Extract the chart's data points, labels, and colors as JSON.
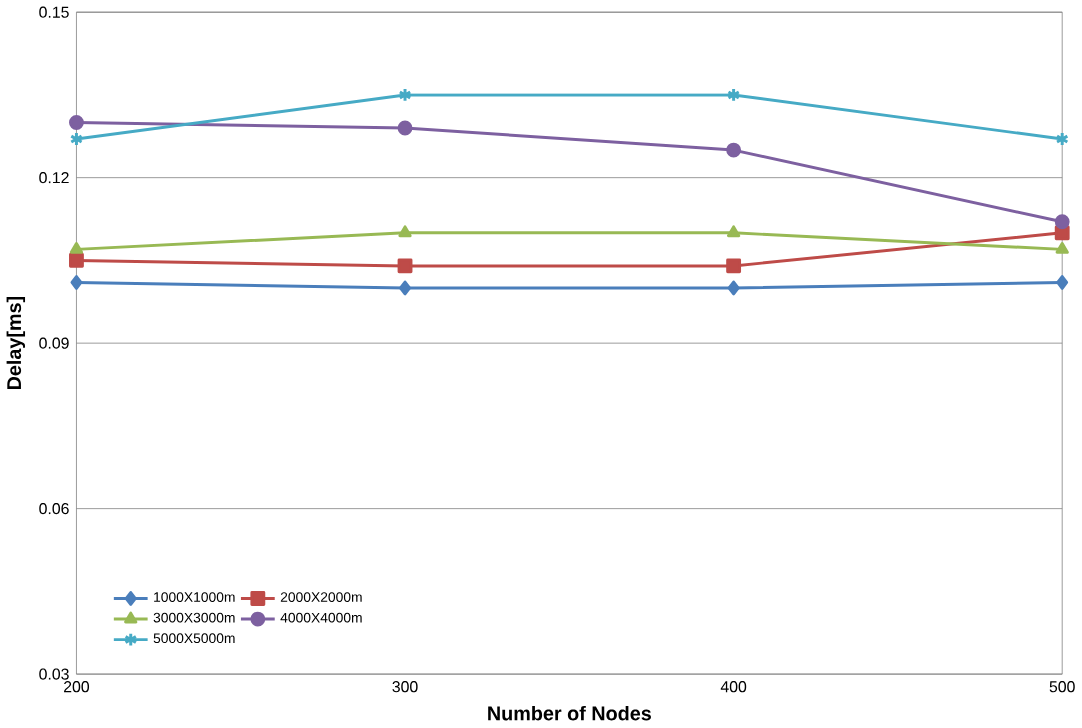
{
  "chart_data": {
    "type": "line",
    "xlabel": "Number of Nodes",
    "ylabel": "Delay[ms]",
    "x": [
      200,
      300,
      400,
      500
    ],
    "xlim": [
      200,
      500
    ],
    "xticks": [
      200,
      300,
      400,
      500
    ],
    "ylim": [
      0.03,
      0.15
    ],
    "yticks": [
      0.03,
      0.06,
      0.09,
      0.12,
      0.15
    ],
    "grid": "y",
    "legend": "bottom left",
    "series": [
      {
        "name": "1000X1000m",
        "color": "#4a7ebb",
        "marker": "diamond",
        "values": [
          0.101,
          0.1,
          0.1,
          0.101
        ]
      },
      {
        "name": "2000X2000m",
        "color": "#be4b48",
        "marker": "square",
        "values": [
          0.105,
          0.104,
          0.104,
          0.11
        ]
      },
      {
        "name": "3000X3000m",
        "color": "#98b954",
        "marker": "triangle",
        "values": [
          0.107,
          0.11,
          0.11,
          0.107
        ]
      },
      {
        "name": "4000X4000m",
        "color": "#7d60a0",
        "marker": "circle",
        "values": [
          0.13,
          0.129,
          0.125,
          0.112
        ]
      },
      {
        "name": "5000X5000m",
        "color": "#46aac5",
        "marker": "cross",
        "values": [
          0.127,
          0.135,
          0.135,
          0.127
        ]
      }
    ]
  }
}
